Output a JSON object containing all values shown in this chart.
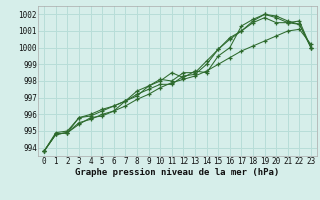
{
  "xlabel": "Graphe pression niveau de la mer (hPa)",
  "bg_color": "#d6eeea",
  "grid_color": "#b8ddd8",
  "line_color": "#2d6a2d",
  "xlim": [
    -0.5,
    23.5
  ],
  "ylim": [
    993.5,
    1002.5
  ],
  "yticks": [
    994,
    995,
    996,
    997,
    998,
    999,
    1000,
    1001,
    1002
  ],
  "xticks": [
    0,
    1,
    2,
    3,
    4,
    5,
    6,
    7,
    8,
    9,
    10,
    11,
    12,
    13,
    14,
    15,
    16,
    17,
    18,
    19,
    20,
    21,
    22,
    23
  ],
  "line1": [
    993.8,
    994.8,
    994.9,
    995.4,
    995.8,
    995.9,
    996.2,
    996.8,
    997.4,
    997.7,
    998.1,
    998.0,
    998.5,
    998.5,
    999.2,
    999.9,
    1000.5,
    1001.0,
    1001.5,
    1001.8,
    1001.5,
    1001.5,
    1001.6,
    1000.0
  ],
  "line2": [
    993.8,
    994.8,
    994.9,
    995.8,
    995.9,
    996.2,
    996.5,
    996.8,
    997.1,
    997.7,
    998.0,
    998.5,
    998.2,
    998.6,
    998.5,
    999.5,
    1000.0,
    1001.3,
    1001.7,
    1002.0,
    1001.9,
    1001.6,
    1001.4,
    1000.0
  ],
  "line3": [
    993.8,
    994.8,
    994.9,
    995.5,
    995.7,
    996.0,
    996.2,
    996.5,
    996.9,
    997.2,
    997.6,
    997.9,
    998.1,
    998.3,
    998.6,
    999.0,
    999.4,
    999.8,
    1000.1,
    1000.4,
    1000.7,
    1001.0,
    1001.1,
    1000.2
  ],
  "line4": [
    993.8,
    994.9,
    995.0,
    995.8,
    996.0,
    996.3,
    996.5,
    996.8,
    997.2,
    997.5,
    997.8,
    997.8,
    998.3,
    998.4,
    999.0,
    999.9,
    1000.6,
    1001.0,
    1001.6,
    1002.0,
    1001.8,
    1001.5,
    1001.4,
    1000.0
  ],
  "tick_fontsize": 5.5,
  "xlabel_fontsize": 6.5,
  "spine_color": "#aaaaaa"
}
